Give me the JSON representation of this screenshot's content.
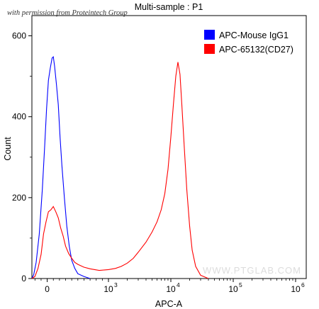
{
  "watermarks": {
    "top": "with permission from Proteintech Group",
    "bottom": "WWW.PTGLAB.COM"
  },
  "chart_data": {
    "type": "line",
    "title": "Multi-sample : P1",
    "xlabel": "APC-A",
    "ylabel": "Count",
    "xscale": "biexponential",
    "ylim": [
      0,
      650
    ],
    "grid": false,
    "legend_position": "top-right",
    "x_ticks": [
      {
        "value": 0,
        "base": "0",
        "exp": ""
      },
      {
        "value": 1000,
        "base": "10",
        "exp": "3"
      },
      {
        "value": 10000,
        "base": "10",
        "exp": "4"
      },
      {
        "value": 100000,
        "base": "10",
        "exp": "5"
      },
      {
        "value": 1000000,
        "base": "10",
        "exp": "6"
      }
    ],
    "y_ticks": [
      0,
      200,
      400,
      600
    ],
    "series": [
      {
        "name": "APC-Mouse IgG1",
        "color": "#0000ff",
        "points": [
          [
            -250,
            0
          ],
          [
            -220,
            10
          ],
          [
            -180,
            40
          ],
          [
            -130,
            110
          ],
          [
            -80,
            220
          ],
          [
            -40,
            330
          ],
          [
            -10,
            420
          ],
          [
            20,
            490
          ],
          [
            50,
            520
          ],
          [
            80,
            545
          ],
          [
            100,
            548
          ],
          [
            120,
            525
          ],
          [
            150,
            480
          ],
          [
            180,
            430
          ],
          [
            210,
            350
          ],
          [
            240,
            280
          ],
          [
            280,
            200
          ],
          [
            320,
            130
          ],
          [
            360,
            80
          ],
          [
            400,
            45
          ],
          [
            450,
            25
          ],
          [
            500,
            12
          ],
          [
            600,
            5
          ],
          [
            700,
            0
          ]
        ]
      },
      {
        "name": "APC-65132(CD27)",
        "color": "#ff0000",
        "points": [
          [
            -250,
            0
          ],
          [
            -200,
            5
          ],
          [
            -150,
            25
          ],
          [
            -100,
            60
          ],
          [
            -60,
            110
          ],
          [
            -20,
            140
          ],
          [
            20,
            165
          ],
          [
            60,
            170
          ],
          [
            100,
            178
          ],
          [
            140,
            165
          ],
          [
            180,
            150
          ],
          [
            220,
            125
          ],
          [
            260,
            105
          ],
          [
            300,
            80
          ],
          [
            350,
            62
          ],
          [
            400,
            50
          ],
          [
            450,
            40
          ],
          [
            500,
            35
          ],
          [
            600,
            28
          ],
          [
            700,
            24
          ],
          [
            850,
            20
          ],
          [
            1000,
            22
          ],
          [
            1300,
            25
          ],
          [
            1600,
            30
          ],
          [
            2000,
            38
          ],
          [
            2500,
            50
          ],
          [
            3000,
            65
          ],
          [
            4000,
            90
          ],
          [
            5000,
            115
          ],
          [
            6000,
            140
          ],
          [
            7000,
            170
          ],
          [
            8000,
            210
          ],
          [
            9000,
            270
          ],
          [
            10000,
            350
          ],
          [
            11000,
            430
          ],
          [
            12000,
            500
          ],
          [
            13000,
            535
          ],
          [
            14000,
            505
          ],
          [
            15000,
            430
          ],
          [
            16500,
            320
          ],
          [
            18000,
            220
          ],
          [
            20000,
            130
          ],
          [
            22000,
            70
          ],
          [
            25000,
            30
          ],
          [
            30000,
            8
          ],
          [
            40000,
            0
          ]
        ]
      }
    ]
  }
}
